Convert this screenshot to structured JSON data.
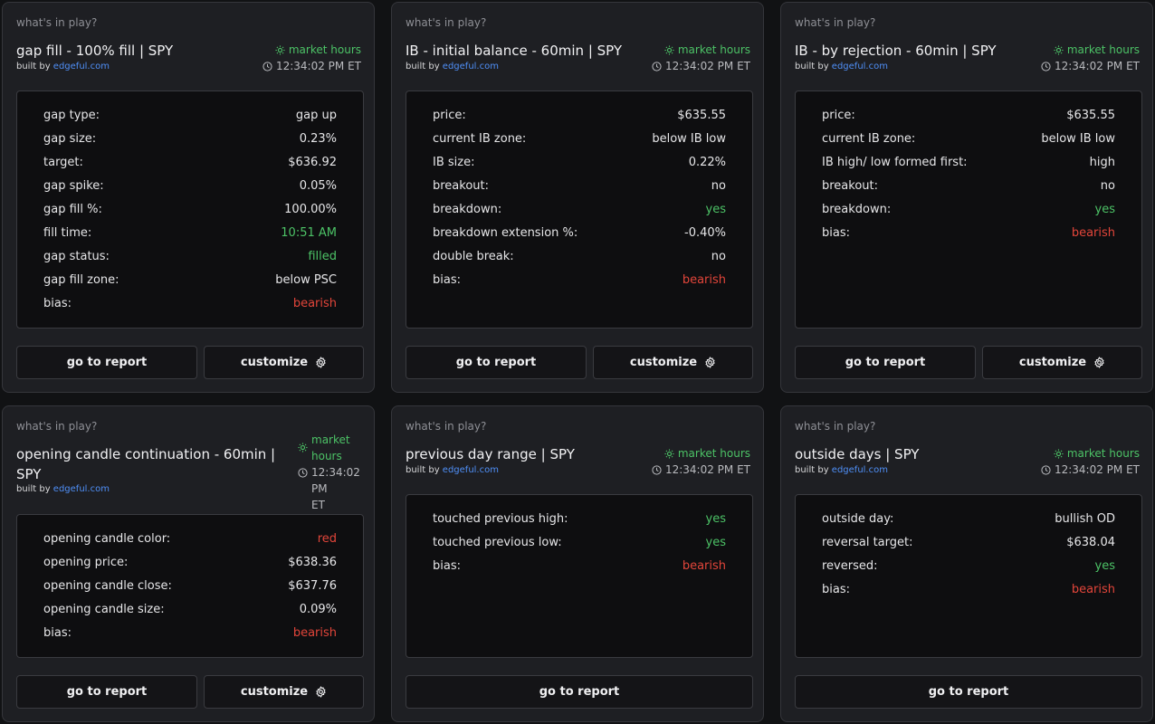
{
  "common": {
    "kicker": "what's in play?",
    "built_prefix": "built by",
    "built_link": "edgeful.com",
    "market_status": "market hours",
    "time": "12:34:02 PM ET",
    "go_to_report": "go to report",
    "customize": "customize"
  },
  "cards": [
    {
      "title": "gap fill - 100% fill | SPY",
      "rows": [
        {
          "label": "gap type:",
          "value": "gap up"
        },
        {
          "label": "gap size:",
          "value": "0.23%"
        },
        {
          "label": "target:",
          "value": "$636.92"
        },
        {
          "label": "gap spike:",
          "value": "0.05%"
        },
        {
          "label": "gap fill %:",
          "value": "100.00%"
        },
        {
          "label": "fill time:",
          "value": "10:51 AM"
        },
        {
          "label": "gap status:",
          "value": "filled"
        },
        {
          "label": "gap fill zone:",
          "value": "below PSC"
        },
        {
          "label": "bias:",
          "value": "bearish"
        }
      ]
    },
    {
      "title": "IB - initial balance - 60min | SPY",
      "rows": [
        {
          "label": "price:",
          "value": "$635.55"
        },
        {
          "label": "current IB zone:",
          "value": "below IB low"
        },
        {
          "label": "IB size:",
          "value": "0.22%"
        },
        {
          "label": "breakout:",
          "value": "no"
        },
        {
          "label": "breakdown:",
          "value": "yes"
        },
        {
          "label": "breakdown extension %:",
          "value": "-0.40%"
        },
        {
          "label": "double break:",
          "value": "no"
        },
        {
          "label": "bias:",
          "value": "bearish"
        }
      ]
    },
    {
      "title": "IB - by rejection - 60min | SPY",
      "rows": [
        {
          "label": "price:",
          "value": "$635.55"
        },
        {
          "label": "current IB zone:",
          "value": "below IB low"
        },
        {
          "label": "IB high/ low formed first:",
          "value": "high"
        },
        {
          "label": "breakout:",
          "value": "no"
        },
        {
          "label": "breakdown:",
          "value": "yes"
        },
        {
          "label": "bias:",
          "value": "bearish"
        }
      ]
    },
    {
      "title": "opening candle continuation - 60min | SPY",
      "status_time_line1": "12:34:02 PM",
      "status_time_line2": "ET",
      "status_mh_line1": "market",
      "status_mh_line2": "hours",
      "rows": [
        {
          "label": "opening candle color:",
          "value": "red"
        },
        {
          "label": "opening price:",
          "value": "$638.36"
        },
        {
          "label": "opening candle close:",
          "value": "$637.76"
        },
        {
          "label": "opening candle size:",
          "value": "0.09%"
        },
        {
          "label": "bias:",
          "value": "bearish"
        }
      ]
    },
    {
      "title": "previous day range | SPY",
      "rows": [
        {
          "label": "touched previous high:",
          "value": "yes"
        },
        {
          "label": "touched previous low:",
          "value": "yes"
        },
        {
          "label": "bias:",
          "value": "bearish"
        }
      ]
    },
    {
      "title": "outside days | SPY",
      "rows": [
        {
          "label": "outside day:",
          "value": "bullish OD"
        },
        {
          "label": "reversal target:",
          "value": "$638.04"
        },
        {
          "label": "reversed:",
          "value": "yes"
        },
        {
          "label": "bias:",
          "value": "bearish"
        }
      ]
    }
  ],
  "colors": {
    "background": "#111214",
    "card": "#1e1f23",
    "panel": "#0e0e10",
    "positive": "#4cc266",
    "negative": "#e2453a",
    "link": "#4f8ff7"
  }
}
